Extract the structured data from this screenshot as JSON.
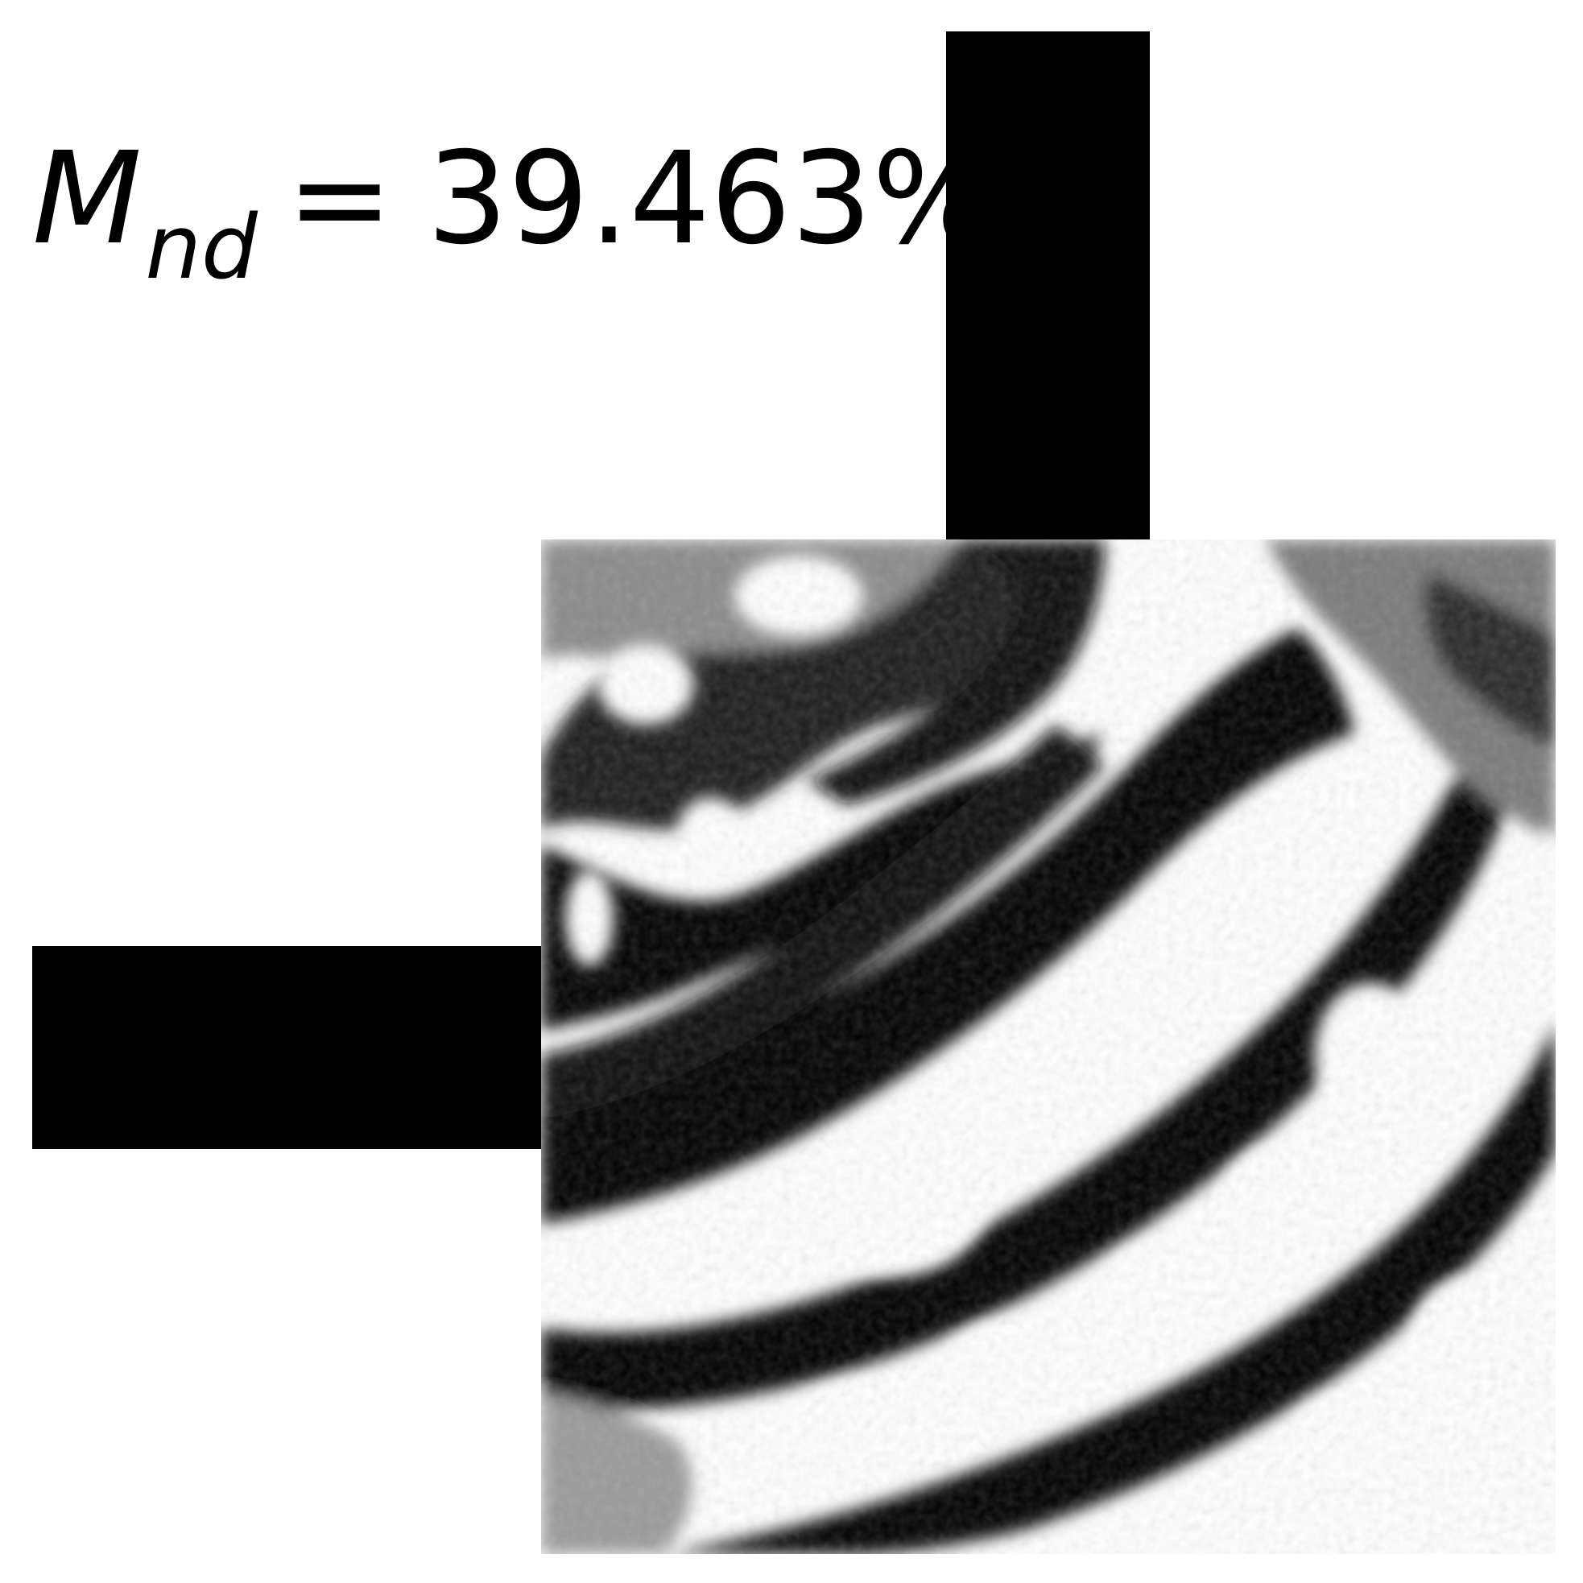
{
  "metric": {
    "symbol": "M",
    "subscript": "nd",
    "operator": "=",
    "value": "39.463%"
  },
  "colors": {
    "mask": "#000000",
    "background": "#ffffff"
  }
}
